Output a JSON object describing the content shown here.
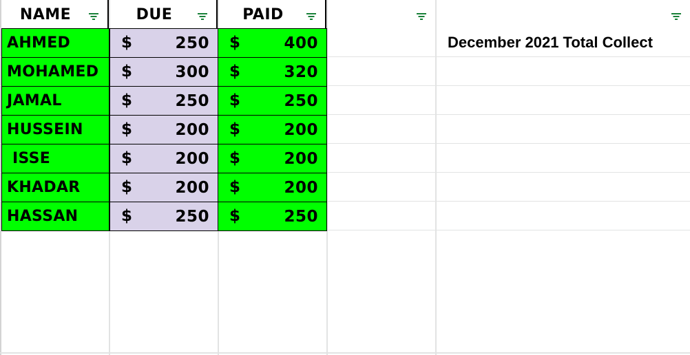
{
  "sheet": {
    "headers": {
      "name": "NAME",
      "due": "DUE",
      "paid": "PAID"
    },
    "currency_symbol": "$",
    "rows": [
      {
        "name": "AHMED",
        "due": "250",
        "paid": "400"
      },
      {
        "name": "MOHAMED",
        "due": "300",
        "paid": "320"
      },
      {
        "name": "JAMAL",
        "due": "250",
        "paid": "250"
      },
      {
        "name": "HUSSEIN",
        "due": "200",
        "paid": "200"
      },
      {
        "name": " ISSE",
        "due": "200",
        "paid": "200"
      },
      {
        "name": "KHADAR",
        "due": "200",
        "paid": "200"
      },
      {
        "name": "HASSAN",
        "due": "250",
        "paid": "250"
      }
    ],
    "note": "December 2021 Total Collect"
  },
  "colors": {
    "name_fill": "#00ff00",
    "due_fill": "#d9d2e9",
    "paid_fill": "#00ff00",
    "filter_icon": "#188038",
    "grid": "#e2e3e3"
  },
  "icons": {
    "filter": "filter-icon"
  }
}
